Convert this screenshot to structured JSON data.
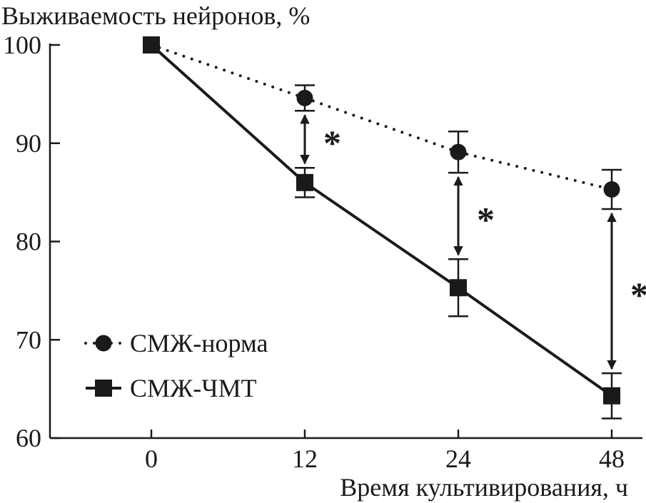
{
  "chart_data": {
    "type": "line",
    "title": "",
    "ylabel": "Выживаемость нейронов, %",
    "xlabel": "Время культивирования, ч",
    "categories": [
      "0",
      "12",
      "24",
      "48"
    ],
    "ylim": [
      60,
      100
    ],
    "yticks": [
      "60",
      "70",
      "80",
      "90",
      "100"
    ],
    "grid": false,
    "legend_position": "lower-left",
    "series": [
      {
        "name": "СМЖ-норма",
        "style": "dotted",
        "marker": "circle",
        "values": [
          100,
          94.6,
          89.1,
          85.3
        ],
        "errors": [
          0,
          1.3,
          2.1,
          2.0
        ]
      },
      {
        "name": "СМЖ-ЧМТ",
        "style": "solid",
        "marker": "square",
        "values": [
          100,
          86.0,
          75.3,
          64.3
        ],
        "errors": [
          0,
          1.5,
          2.9,
          2.3
        ]
      }
    ],
    "annotations": [
      {
        "category": "12",
        "label": "*"
      },
      {
        "category": "24",
        "label": "*"
      },
      {
        "category": "48",
        "label": "*"
      }
    ],
    "colors": {
      "ink": "#1a1a1a",
      "background": "#ffffff"
    }
  }
}
